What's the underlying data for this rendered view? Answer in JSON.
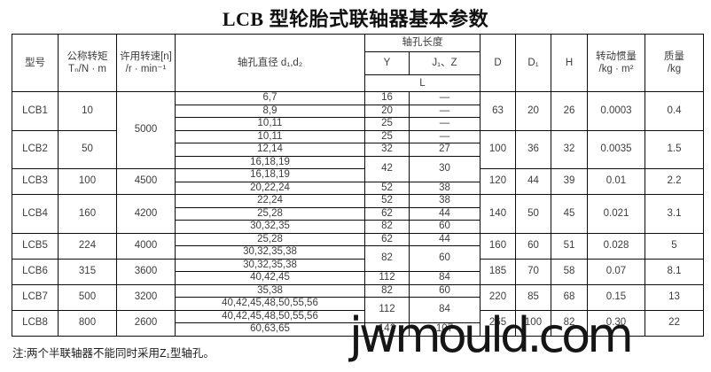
{
  "title": "LCB 型轮胎式联轴器基本参数",
  "note": "注:两个半联轴器不能同时采用Z₁型轴孔。",
  "watermark": "jwmould.com",
  "table": {
    "headers": {
      "model": "型号",
      "torque_l1": "公称转矩",
      "torque_l2": "Tₙ/N · m",
      "speed_l1": "许用转速[n]",
      "speed_l2": "/r · min⁻¹",
      "bore": "轴孔直径 d₁,d₂",
      "bore_len_group": "轴孔长度",
      "y": "Y",
      "j1z": "J₁、Z",
      "l": "L",
      "D": "D",
      "D1": "D₁",
      "H": "H",
      "inertia_l1": "转动惯量",
      "inertia_l2": "/kg · m²",
      "mass_l1": "质量",
      "mass_l2": "/kg"
    },
    "rows": [
      [
        {
          "c": "model",
          "t": "LCB1",
          "rs": 3
        },
        {
          "c": "torque",
          "t": "10",
          "rs": 3
        },
        {
          "c": "speed",
          "t": "5000",
          "rs": 6
        },
        {
          "c": "bore",
          "t": "6,7"
        },
        {
          "c": "y",
          "t": "16"
        },
        {
          "c": "j1z",
          "t": "—"
        },
        {
          "c": "D",
          "t": "63",
          "rs": 3
        },
        {
          "c": "D1",
          "t": "20",
          "rs": 3
        },
        {
          "c": "H",
          "t": "26",
          "rs": 3
        },
        {
          "c": "inertia",
          "t": "0.0003",
          "rs": 3
        },
        {
          "c": "mass",
          "t": "0.4",
          "rs": 3
        }
      ],
      [
        {
          "c": "bore",
          "t": "8,9"
        },
        {
          "c": "y",
          "t": "20"
        },
        {
          "c": "j1z",
          "t": "—"
        }
      ],
      [
        {
          "c": "bore",
          "t": "10,11"
        },
        {
          "c": "y",
          "t": "25"
        },
        {
          "c": "j1z",
          "t": "—"
        }
      ],
      [
        {
          "c": "model",
          "t": "LCB2",
          "rs": 3
        },
        {
          "c": "torque",
          "t": "50",
          "rs": 3
        },
        {
          "c": "bore",
          "t": "10,11"
        },
        {
          "c": "y",
          "t": "25"
        },
        {
          "c": "j1z",
          "t": "—"
        },
        {
          "c": "D",
          "t": "100",
          "rs": 3
        },
        {
          "c": "D1",
          "t": "36",
          "rs": 3
        },
        {
          "c": "H",
          "t": "32",
          "rs": 3
        },
        {
          "c": "inertia",
          "t": "0.0035",
          "rs": 3
        },
        {
          "c": "mass",
          "t": "1.5",
          "rs": 3
        }
      ],
      [
        {
          "c": "bore",
          "t": "12,14"
        },
        {
          "c": "y",
          "t": "32"
        },
        {
          "c": "j1z",
          "t": "27"
        }
      ],
      [
        {
          "c": "bore",
          "t": "16,18,19"
        },
        {
          "c": "y",
          "t": "42",
          "rs": 2
        },
        {
          "c": "j1z",
          "t": "30",
          "rs": 2
        }
      ],
      [
        {
          "c": "model",
          "t": "LCB3",
          "rs": 2
        },
        {
          "c": "torque",
          "t": "100",
          "rs": 2
        },
        {
          "c": "speed",
          "t": "4500",
          "rs": 2
        },
        {
          "c": "bore",
          "t": "16,18,19"
        },
        {
          "c": "D",
          "t": "120",
          "rs": 2
        },
        {
          "c": "D1",
          "t": "44",
          "rs": 2
        },
        {
          "c": "H",
          "t": "39",
          "rs": 2
        },
        {
          "c": "inertia",
          "t": "0.01",
          "rs": 2
        },
        {
          "c": "mass",
          "t": "2.2",
          "rs": 2
        }
      ],
      [
        {
          "c": "bore",
          "t": "20,22,24"
        },
        {
          "c": "y",
          "t": "52"
        },
        {
          "c": "j1z",
          "t": "38"
        }
      ],
      [
        {
          "c": "model",
          "t": "LCB4",
          "rs": 3
        },
        {
          "c": "torque",
          "t": "160",
          "rs": 3
        },
        {
          "c": "speed",
          "t": "4200",
          "rs": 3
        },
        {
          "c": "bore",
          "t": "22,24"
        },
        {
          "c": "y",
          "t": "52"
        },
        {
          "c": "j1z",
          "t": "38"
        },
        {
          "c": "D",
          "t": "140",
          "rs": 3
        },
        {
          "c": "D1",
          "t": "50",
          "rs": 3
        },
        {
          "c": "H",
          "t": "45",
          "rs": 3
        },
        {
          "c": "inertia",
          "t": "0.021",
          "rs": 3
        },
        {
          "c": "mass",
          "t": "3.1",
          "rs": 3
        }
      ],
      [
        {
          "c": "bore",
          "t": "25,28"
        },
        {
          "c": "y",
          "t": "62"
        },
        {
          "c": "j1z",
          "t": "44"
        }
      ],
      [
        {
          "c": "bore",
          "t": "30,32,35"
        },
        {
          "c": "y",
          "t": "82"
        },
        {
          "c": "j1z",
          "t": "60"
        }
      ],
      [
        {
          "c": "model",
          "t": "LCB5",
          "rs": 2
        },
        {
          "c": "torque",
          "t": "224",
          "rs": 2
        },
        {
          "c": "speed",
          "t": "4000",
          "rs": 2
        },
        {
          "c": "bore",
          "t": "25,28"
        },
        {
          "c": "y",
          "t": "62"
        },
        {
          "c": "j1z",
          "t": "44"
        },
        {
          "c": "D",
          "t": "160",
          "rs": 2
        },
        {
          "c": "D1",
          "t": "60",
          "rs": 2
        },
        {
          "c": "H",
          "t": "51",
          "rs": 2
        },
        {
          "c": "inertia",
          "t": "0.028",
          "rs": 2
        },
        {
          "c": "mass",
          "t": "5",
          "rs": 2
        }
      ],
      [
        {
          "c": "bore",
          "t": "30,32,35,38"
        },
        {
          "c": "y",
          "t": "82",
          "rs": 2
        },
        {
          "c": "j1z",
          "t": "60",
          "rs": 2
        }
      ],
      [
        {
          "c": "model",
          "t": "LCB6",
          "rs": 2
        },
        {
          "c": "torque",
          "t": "315",
          "rs": 2
        },
        {
          "c": "speed",
          "t": "3600",
          "rs": 2
        },
        {
          "c": "bore",
          "t": "30,32,35,38"
        },
        {
          "c": "D",
          "t": "185",
          "rs": 2
        },
        {
          "c": "D1",
          "t": "70",
          "rs": 2
        },
        {
          "c": "H",
          "t": "58",
          "rs": 2
        },
        {
          "c": "inertia",
          "t": "0.07",
          "rs": 2
        },
        {
          "c": "mass",
          "t": "8.1",
          "rs": 2
        }
      ],
      [
        {
          "c": "bore",
          "t": "40,42,45"
        },
        {
          "c": "y",
          "t": "112"
        },
        {
          "c": "j1z",
          "t": "84"
        }
      ],
      [
        {
          "c": "model",
          "t": "LCB7",
          "rs": 2
        },
        {
          "c": "torque",
          "t": "500",
          "rs": 2
        },
        {
          "c": "speed",
          "t": "3200",
          "rs": 2
        },
        {
          "c": "bore",
          "t": "35,38"
        },
        {
          "c": "y",
          "t": "82"
        },
        {
          "c": "j1z",
          "t": "60"
        },
        {
          "c": "D",
          "t": "220",
          "rs": 2
        },
        {
          "c": "D1",
          "t": "85",
          "rs": 2
        },
        {
          "c": "H",
          "t": "68",
          "rs": 2
        },
        {
          "c": "inertia",
          "t": "0.15",
          "rs": 2
        },
        {
          "c": "mass",
          "t": "13",
          "rs": 2
        }
      ],
      [
        {
          "c": "bore",
          "t": "40,42,45,48,50,55,56"
        },
        {
          "c": "y",
          "t": "112",
          "rs": 2
        },
        {
          "c": "j1z",
          "t": "84",
          "rs": 2
        }
      ],
      [
        {
          "c": "model",
          "t": "LCB8",
          "rs": 2
        },
        {
          "c": "torque",
          "t": "800",
          "rs": 2
        },
        {
          "c": "speed",
          "t": "2600",
          "rs": 2
        },
        {
          "c": "bore",
          "t": "40,42,45,48,50,55,56"
        },
        {
          "c": "D",
          "t": "265",
          "rs": 2
        },
        {
          "c": "D1",
          "t": "100",
          "rs": 2
        },
        {
          "c": "H",
          "t": "82",
          "rs": 2
        },
        {
          "c": "inertia",
          "t": "0.30",
          "rs": 2
        },
        {
          "c": "mass",
          "t": "22",
          "rs": 2
        }
      ],
      [
        {
          "c": "bore",
          "t": "60,63,65"
        },
        {
          "c": "y",
          "t": "142"
        },
        {
          "c": "j1z",
          "t": "107"
        }
      ]
    ]
  }
}
